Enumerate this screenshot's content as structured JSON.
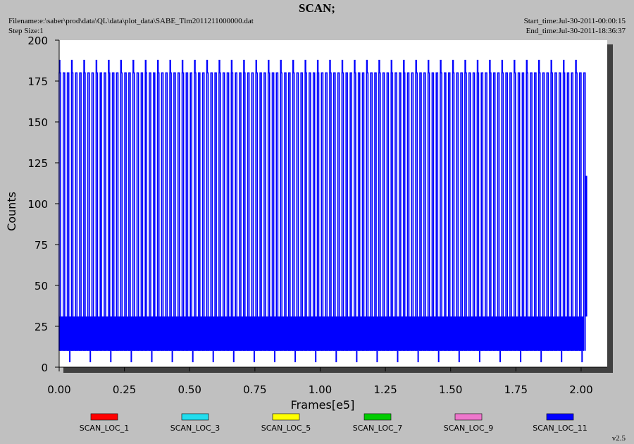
{
  "header": {
    "title": "SCAN;",
    "filename": "Filename:e:\\saber\\prod\\data\\QL\\data\\plot_data\\SABE_Tlm2011211000000.dat",
    "step_size": "Step Size:1",
    "start_time": "Start_time:Jul-30-2011-00:00:15",
    "end_time": "End_time:Jul-30-2011-18:36:37",
    "version": "v2.5"
  },
  "colors": {
    "background": "#c0c0c0",
    "plot_area": "#ffffff",
    "shadow": "#404040"
  },
  "chart_data": {
    "type": "line",
    "title": "SCAN;",
    "xlabel": "Frames[e5]",
    "ylabel": "Counts",
    "xlim": [
      0,
      2.1
    ],
    "ylim": [
      0,
      200
    ],
    "x_ticks": [
      "0.00",
      "0.25",
      "0.50",
      "0.75",
      "1.00",
      "1.25",
      "1.50",
      "1.75",
      "2.00"
    ],
    "y_ticks": [
      "0",
      "25",
      "50",
      "75",
      "100",
      "125",
      "150",
      "175",
      "200"
    ],
    "grid": false,
    "legend_position": "bottom",
    "series": [
      {
        "name": "SCAN_LOC_1",
        "color": "#ff0000"
      },
      {
        "name": "SCAN_LOC_3",
        "color": "#22ddee"
      },
      {
        "name": "SCAN_LOC_5",
        "color": "#ffff00"
      },
      {
        "name": "SCAN_LOC_7",
        "color": "#00cc00"
      },
      {
        "name": "SCAN_LOC_9",
        "color": "#ee77cc"
      },
      {
        "name": "SCAN_LOC_11",
        "color": "#0000ff",
        "x_end": 2.01,
        "peak_high": 188,
        "peak_low": 180,
        "band_low": 10,
        "band_high": 31,
        "dip_min": 3,
        "final_value": 117
      }
    ]
  }
}
